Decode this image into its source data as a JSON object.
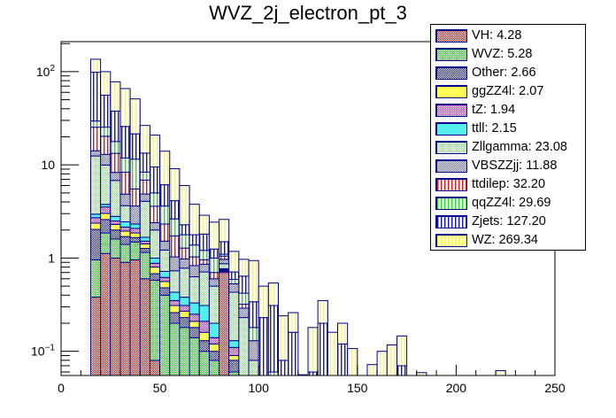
{
  "chart_data": {
    "type": "bar",
    "subtype": "stacked-histogram",
    "title": "WVZ_2j_electron_pt_3",
    "xlabel": "",
    "ylabel": "",
    "xlim": [
      0,
      250
    ],
    "ylim": [
      0.055,
      210
    ],
    "yscale": "log",
    "bin_width": 5,
    "bin_low_edges": [
      15,
      20,
      25,
      30,
      35,
      40,
      45,
      50,
      55,
      60,
      65,
      70,
      75,
      80,
      85,
      90,
      95,
      100,
      105,
      110,
      115,
      120,
      125,
      130,
      135,
      140,
      145,
      150,
      155,
      160,
      165,
      170,
      175,
      180,
      185,
      190,
      195,
      200,
      205,
      210,
      215,
      220
    ],
    "x_ticks": [
      0,
      50,
      100,
      150,
      200,
      250
    ],
    "x_tick_labels": [
      "0",
      "50",
      "100",
      "150",
      "200",
      "250"
    ],
    "y_ticks": [
      0.1,
      1,
      10,
      100
    ],
    "y_tick_labels": [
      "10^-1",
      "1",
      "10",
      "10^2"
    ],
    "legend_position": "top-right",
    "series": [
      {
        "name": "VH",
        "legend": "VH: 4.28",
        "color": "#cc2222",
        "pattern": "check",
        "values": [
          0.38,
          1.12,
          1.0,
          0.9,
          0.96,
          0.6,
          0.08,
          0,
          0,
          0,
          0,
          0,
          0,
          0.7,
          0,
          0,
          0,
          0,
          0,
          0,
          0,
          0,
          0,
          0,
          0,
          0,
          0,
          0,
          0,
          0,
          0,
          0,
          0,
          0,
          0,
          0,
          0,
          0,
          0,
          0,
          0,
          0
        ]
      },
      {
        "name": "WVZ",
        "legend": "WVZ: 5.28",
        "color": "#33cc33",
        "pattern": "check",
        "values": [
          0.58,
          0.74,
          0.6,
          0.5,
          0.53,
          0.55,
          0.5,
          0.4,
          0.2,
          0.18,
          0.14,
          0.1,
          0.08,
          0.02,
          0.06,
          0,
          0,
          0,
          0,
          0,
          0,
          0,
          0,
          0,
          0,
          0,
          0,
          0,
          0,
          0,
          0,
          0,
          0,
          0,
          0,
          0,
          0,
          0,
          0,
          0,
          0,
          0
        ]
      },
      {
        "name": "Other",
        "legend": "Other: 2.66",
        "color": "#1a1aaa",
        "pattern": "check",
        "values": [
          1.07,
          0.73,
          0.4,
          0.3,
          0.17,
          0.12,
          0.1,
          0.08,
          0.06,
          0.05,
          0.04,
          0.03,
          0.02,
          0.01,
          0.02,
          0.02,
          0,
          0,
          0,
          0,
          0,
          0,
          0,
          0,
          0,
          0,
          0,
          0,
          0,
          0,
          0,
          0,
          0,
          0,
          0,
          0,
          0,
          0,
          0,
          0,
          0,
          0
        ]
      },
      {
        "name": "ggZZ4l",
        "legend": "ggZZ4l: 2.07",
        "color": "#ffff55",
        "pattern": "solid",
        "values": [
          0.34,
          0.43,
          0.3,
          0.25,
          0.2,
          0.15,
          0.12,
          0.08,
          0.05,
          0.04,
          0.03,
          0.03,
          0.02,
          0.01,
          0.01,
          0,
          0,
          0,
          0,
          0,
          0,
          0,
          0,
          0,
          0,
          0,
          0,
          0,
          0,
          0,
          0,
          0,
          0,
          0,
          0,
          0,
          0,
          0,
          0,
          0,
          0,
          0
        ]
      },
      {
        "name": "tZ",
        "legend": "tZ: 1.94",
        "color": "#cc33cc",
        "pattern": "check",
        "values": [
          0.34,
          0.51,
          0.2,
          0.2,
          0.22,
          0.1,
          0.08,
          0.06,
          0.04,
          0.04,
          0.04,
          0.05,
          0.02,
          0.01,
          0.02,
          0,
          0,
          0,
          0,
          0,
          0,
          0,
          0,
          0,
          0,
          0,
          0,
          0,
          0,
          0,
          0,
          0,
          0,
          0,
          0,
          0,
          0,
          0,
          0,
          0,
          0,
          0
        ]
      },
      {
        "name": "ttll",
        "legend": "ttll: 2.15",
        "color": "#55eeee",
        "pattern": "solid",
        "values": [
          0.25,
          0.24,
          0.3,
          0.3,
          0.24,
          0.15,
          0.12,
          0.1,
          0.08,
          0.07,
          0.08,
          0.1,
          0.06,
          0.02,
          0.02,
          0.01,
          0,
          0,
          0,
          0,
          0,
          0,
          0,
          0,
          0,
          0,
          0,
          0,
          0,
          0,
          0,
          0,
          0,
          0,
          0,
          0,
          0,
          0,
          0,
          0,
          0,
          0
        ]
      },
      {
        "name": "Zllgamma",
        "legend": "Zllgamma: 23.08",
        "color": "#99dd99",
        "pattern": "check",
        "values": [
          9.5,
          6.2,
          4.0,
          1.2,
          0.0,
          2.4,
          1.0,
          0.5,
          0.3,
          0.4,
          0.3,
          0.4,
          0.3,
          0.1,
          0.3,
          0.2,
          0.08,
          0,
          0,
          0,
          0,
          0,
          0,
          0,
          0,
          0,
          0,
          0,
          0,
          0,
          0,
          0,
          0,
          0,
          0,
          0,
          0,
          0,
          0,
          0,
          0,
          0
        ]
      },
      {
        "name": "VBSZZjj",
        "legend": "VBSZZjj: 11.88",
        "color": "#6666bb",
        "pattern": "check",
        "values": [
          1.7,
          3.0,
          1.5,
          1.2,
          1.3,
          0.8,
          0.4,
          0.3,
          0.3,
          0.2,
          0.2,
          0.15,
          0.1,
          0.1,
          0.1,
          0.06,
          0.05,
          0,
          0,
          0,
          0,
          0,
          0,
          0,
          0,
          0,
          0,
          0,
          0,
          0,
          0,
          0,
          0,
          0,
          0,
          0,
          0,
          0,
          0,
          0,
          0,
          0
        ]
      },
      {
        "name": "ttdilep",
        "legend": "ttdilep: 32.20",
        "color": "#ee1111",
        "pattern": "vstripe",
        "values": [
          11.2,
          7.3,
          5.0,
          3.5,
          1.9,
          2.0,
          1.2,
          0.8,
          0.7,
          0.3,
          0.2,
          0.1,
          0.1,
          0.08,
          0.0,
          0.03,
          0,
          0,
          0,
          0,
          0,
          0,
          0,
          0,
          0,
          0,
          0,
          0,
          0,
          0,
          0,
          0,
          0,
          0,
          0,
          0,
          0,
          0,
          0,
          0,
          0,
          0
        ]
      },
      {
        "name": "qqZZ4l",
        "legend": "qqZZ4l: 29.69",
        "color": "#22dd22",
        "pattern": "vstripe",
        "values": [
          4.2,
          5.1,
          4.5,
          3.5,
          6.0,
          1.5,
          1.4,
          1.3,
          0.9,
          0.5,
          0.35,
          0.25,
          0.3,
          0.05,
          0.06,
          0.1,
          0.05,
          0.05,
          0.06,
          0.03,
          0.02,
          0,
          0,
          0,
          0,
          0,
          0,
          0,
          0,
          0,
          0,
          0,
          0,
          0,
          0,
          0,
          0,
          0,
          0,
          0,
          0,
          0
        ]
      },
      {
        "name": "Zjets",
        "legend": "Zjets: 127.20",
        "color": "#1111cc",
        "pattern": "vstripe",
        "values": [
          69,
          30.6,
          20,
          14,
          10,
          5,
          4.5,
          2.5,
          1.5,
          0.5,
          0.4,
          0.6,
          0.25,
          0.4,
          0.12,
          0.22,
          0.16,
          0.18,
          0.25,
          0.05,
          0.14,
          0,
          0.06,
          0.2,
          0,
          0.12,
          0,
          0,
          0,
          0,
          0,
          0.07,
          0,
          0,
          0,
          0,
          0,
          0,
          0,
          0,
          0,
          0
        ]
      },
      {
        "name": "WZ",
        "legend": "WZ: 269.34",
        "color": "#ffff22",
        "pattern": "vstripe",
        "values": [
          37.4,
          44,
          40,
          40,
          29.5,
          13.1,
          11.4,
          7.9,
          4.97,
          3.72,
          2.0,
          1.07,
          1.18,
          1.1,
          0.47,
          0.33,
          0.6,
          0.27,
          0.23,
          0.16,
          0.1,
          0.056,
          0.12,
          0.15,
          0.16,
          0.08,
          0.107,
          0,
          0.072,
          0.1,
          0.117,
          0.076,
          0,
          0.059,
          0,
          0,
          0,
          0,
          0,
          0,
          0,
          0.062
        ]
      }
    ]
  }
}
